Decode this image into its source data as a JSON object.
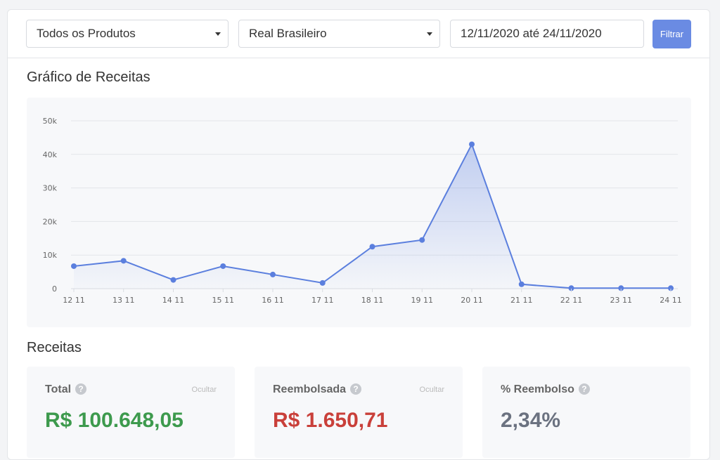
{
  "filters": {
    "product_select": "Todos os Produtos",
    "currency_select": "Real Brasileiro",
    "date_range": "12/11/2020 até 24/11/2020",
    "filter_button": "Filtrar"
  },
  "chart_section": {
    "title": "Gráfico de Receitas"
  },
  "chart_data": {
    "type": "area",
    "categories": [
      "12 11",
      "13 11",
      "14 11",
      "15 11",
      "16 11",
      "17 11",
      "18 11",
      "19 11",
      "20 11",
      "21 11",
      "22 11",
      "23 11",
      "24 11"
    ],
    "series": [
      {
        "values": [
          6700,
          8300,
          2600,
          6700,
          4200,
          1700,
          12500,
          14500,
          43000,
          1300,
          150,
          150,
          150
        ]
      }
    ],
    "yticks": [
      0,
      10000,
      20000,
      30000,
      40000,
      50000
    ],
    "ytick_labels": [
      "0",
      "10k",
      "20k",
      "30k",
      "40k",
      "50k"
    ],
    "ylim": [
      0,
      50000
    ],
    "grid": true,
    "color": "#5b7fde"
  },
  "revenue_section": {
    "title": "Receitas"
  },
  "cards": {
    "total": {
      "label": "Total",
      "help": "?",
      "hide": "Ocultar",
      "value": "R$ 100.648,05",
      "color": "#3d9a4d"
    },
    "refunded": {
      "label": "Reembolsada",
      "help": "?",
      "hide": "Ocultar",
      "value": "R$ 1.650,71",
      "color": "#c9403a"
    },
    "refund_pct": {
      "label": "% Reembolso",
      "help": "?",
      "value": "2,34%",
      "color": "#6b7280"
    }
  }
}
